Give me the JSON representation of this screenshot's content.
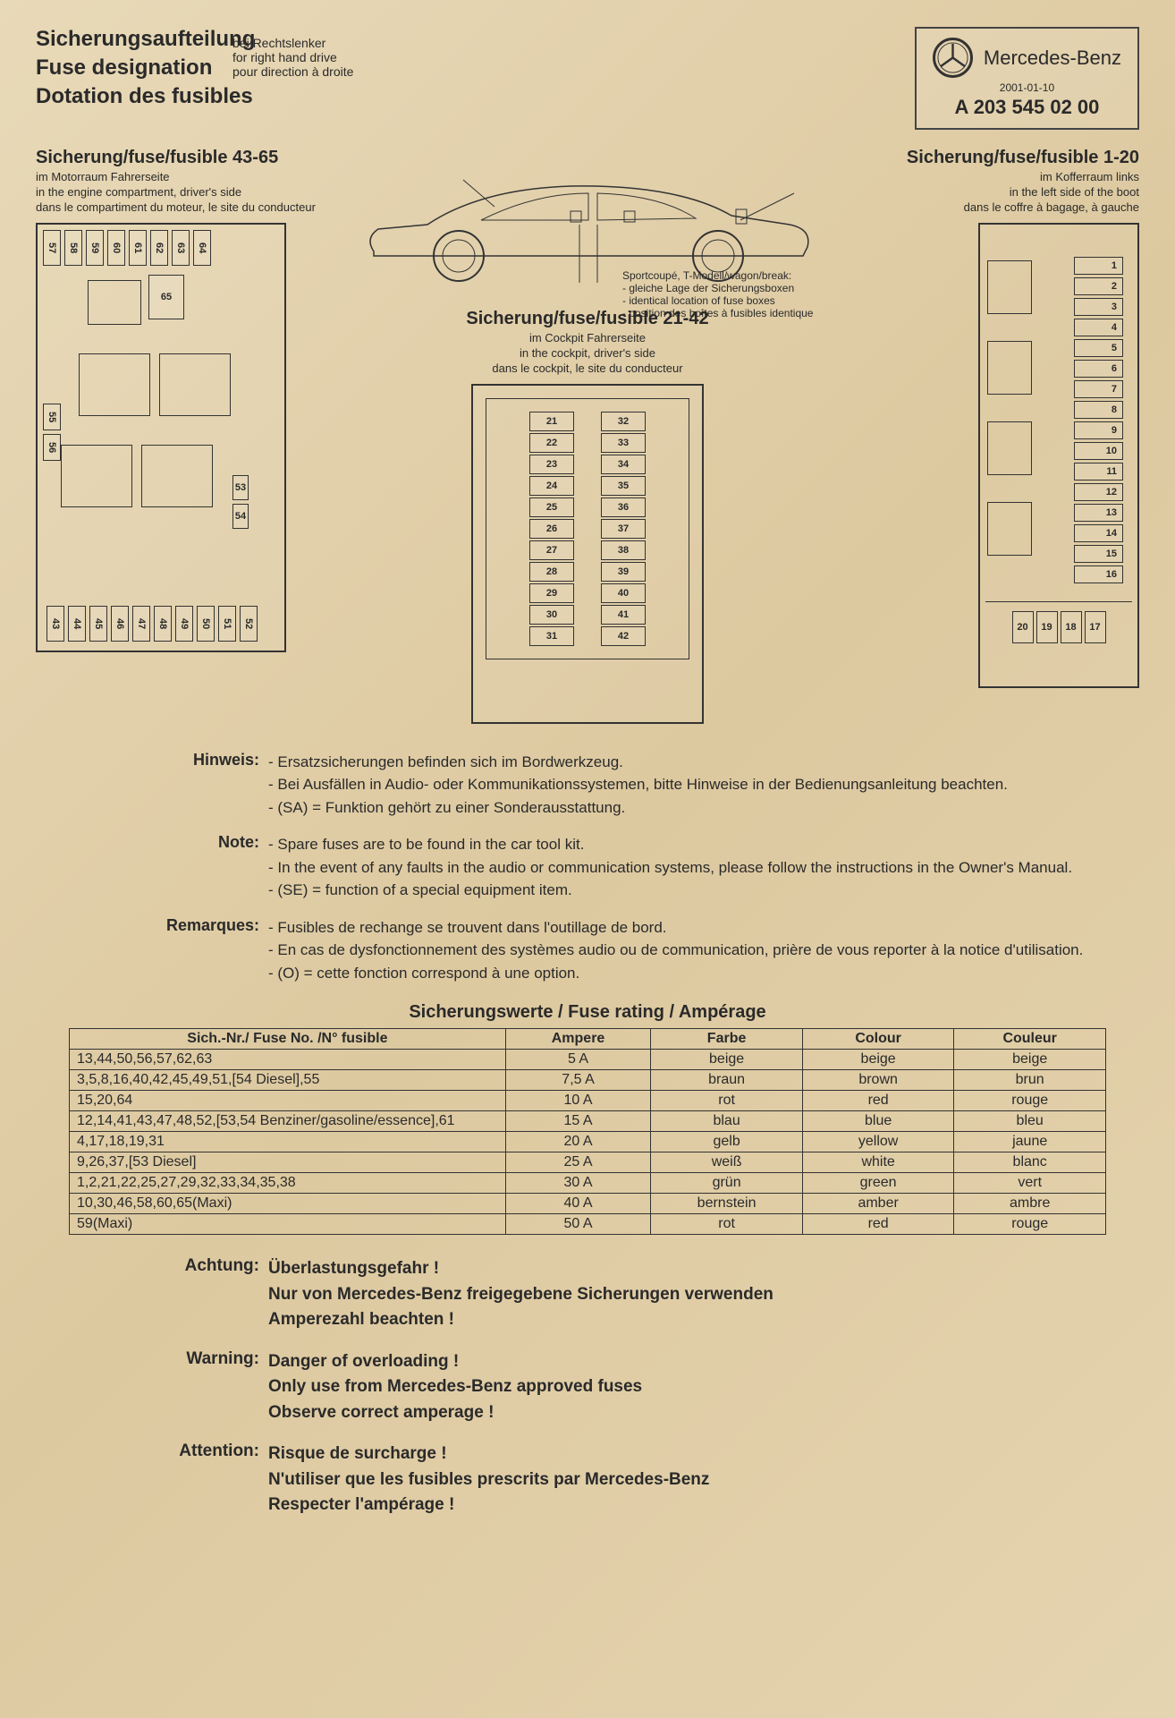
{
  "header": {
    "title_de": "Sicherungsaufteilung",
    "title_en": "Fuse designation",
    "title_fr": "Dotation des fusibles",
    "rhd_de": "bei Rechtslenker",
    "rhd_en": "for right hand drive",
    "rhd_fr": "pour direction à droite"
  },
  "brand": {
    "name": "Mercedes-Benz",
    "date": "2001-01-10",
    "part": "A 203 545 02 00"
  },
  "box43_65": {
    "title": "Sicherung/fuse/fusible 43-65",
    "loc_de": "im Motorraum Fahrerseite",
    "loc_en": "in the engine compartment, driver's side",
    "loc_fr": "dans le compartiment du moteur, le site du conducteur",
    "top": [
      "57",
      "58",
      "59",
      "60",
      "61",
      "62",
      "63",
      "64"
    ],
    "slot65": "65",
    "side": [
      "55",
      "56"
    ],
    "mid": [
      "53",
      "54"
    ],
    "bottom": [
      "43",
      "44",
      "45",
      "46",
      "47",
      "48",
      "49",
      "50",
      "51",
      "52"
    ]
  },
  "box21_42": {
    "title": "Sicherung/fuse/fusible 21-42",
    "loc_de": "im Cockpit Fahrerseite",
    "loc_en": "in the cockpit, driver's side",
    "loc_fr": "dans le cockpit, le site du conducteur",
    "rows": [
      [
        "21",
        "32"
      ],
      [
        "22",
        "33"
      ],
      [
        "23",
        "34"
      ],
      [
        "24",
        "35"
      ],
      [
        "25",
        "36"
      ],
      [
        "26",
        "37"
      ],
      [
        "27",
        "38"
      ],
      [
        "28",
        "39"
      ],
      [
        "29",
        "40"
      ],
      [
        "30",
        "41"
      ],
      [
        "31",
        "42"
      ]
    ]
  },
  "box1_20": {
    "title": "Sicherung/fuse/fusible 1-20",
    "loc_de": "im Kofferraum links",
    "loc_en": "in the left side of the boot",
    "loc_fr": "dans le coffre à bagage, à gauche",
    "col": [
      "1",
      "2",
      "3",
      "4",
      "5",
      "6",
      "7",
      "8",
      "9",
      "10",
      "11",
      "12",
      "13",
      "14",
      "15",
      "16"
    ],
    "bottom": [
      "20",
      "19",
      "18",
      "17"
    ]
  },
  "car_note": {
    "l1": "Sportcoupé, T-Modell/wagon/break:",
    "l2": "- gleiche Lage der Sicherungsboxen",
    "l3": "- identical location of fuse boxes",
    "l4": "- position des boîtes à fusibles identique"
  },
  "notes": {
    "de_label": "Hinweis:",
    "de": [
      "Ersatzsicherungen befinden sich im Bordwerkzeug.",
      "Bei Ausfällen in Audio- oder Kommunikationssystemen, bitte Hinweise in der Bedienungsanleitung beachten.",
      "(SA) = Funktion gehört zu einer Sonderausstattung."
    ],
    "en_label": "Note:",
    "en": [
      "Spare fuses are to be found in the car tool kit.",
      "In the event of any faults in the audio or communication systems, please follow the instructions in the Owner's Manual.",
      "(SE) = function of a special equipment item."
    ],
    "fr_label": "Remarques:",
    "fr": [
      "Fusibles de rechange se trouvent dans l'outillage de bord.",
      "En cas de dysfonctionnement des systèmes audio ou de communication, prière de vous reporter à la notice d'utilisation.",
      "(O) = cette fonction correspond à une option."
    ]
  },
  "rating": {
    "title": "Sicherungswerte  /  Fuse rating  /  Ampérage",
    "headers": [
      "Sich.-Nr./ Fuse No. /N° fusible",
      "Ampere",
      "Farbe",
      "Colour",
      "Couleur"
    ],
    "rows": [
      [
        "13,44,50,56,57,62,63",
        "5 A",
        "beige",
        "beige",
        "beige"
      ],
      [
        "3,5,8,16,40,42,45,49,51,[54 Diesel],55",
        "7,5 A",
        "braun",
        "brown",
        "brun"
      ],
      [
        "15,20,64",
        "10 A",
        "rot",
        "red",
        "rouge"
      ],
      [
        "12,14,41,43,47,48,52,[53,54 Benziner/gasoline/essence],61",
        "15 A",
        "blau",
        "blue",
        "bleu"
      ],
      [
        "4,17,18,19,31",
        "20 A",
        "gelb",
        "yellow",
        "jaune"
      ],
      [
        "9,26,37,[53 Diesel]",
        "25 A",
        "weiß",
        "white",
        "blanc"
      ],
      [
        "1,2,21,22,25,27,29,32,33,34,35,38",
        "30 A",
        "grün",
        "green",
        "vert"
      ],
      [
        "10,30,46,58,60,65(Maxi)",
        "40 A",
        "bernstein",
        "amber",
        "ambre"
      ],
      [
        "59(Maxi)",
        "50 A",
        "rot",
        "red",
        "rouge"
      ]
    ]
  },
  "warn": {
    "de_label": "Achtung:",
    "de": [
      "Überlastungsgefahr !",
      "Nur von Mercedes-Benz freigegebene Sicherungen verwenden",
      "Amperezahl beachten !"
    ],
    "en_label": "Warning:",
    "en": [
      "Danger of overloading !",
      "Only use from Mercedes-Benz approved fuses",
      "Observe correct amperage !"
    ],
    "fr_label": "Attention:",
    "fr": [
      "Risque de surcharge !",
      "N'utiliser que les fusibles prescrits par Mercedes-Benz",
      "Respecter l'ampérage !"
    ]
  },
  "colors": {
    "paper": "#e8d9b8",
    "ink": "#2a2a2a",
    "border": "#333333"
  }
}
